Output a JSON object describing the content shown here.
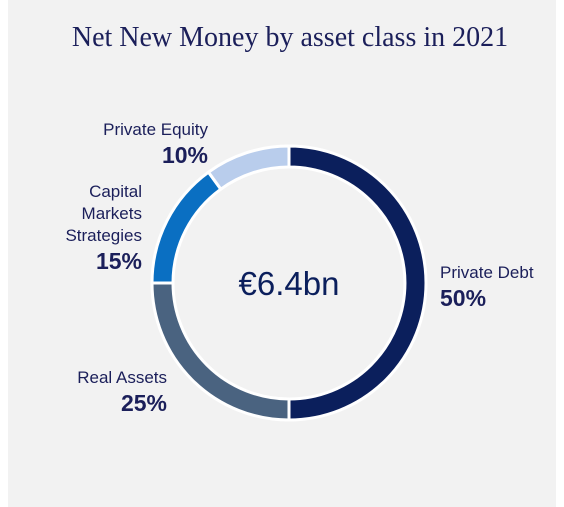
{
  "chart_data": {
    "type": "donut",
    "title": "Net New Money by asset class in 2021",
    "center_label": "€6.4bn",
    "categories": [
      "Private Debt",
      "Real Assets",
      "Capital Markets Strategies",
      "Private Equity"
    ],
    "values": [
      50,
      25,
      15,
      10
    ],
    "value_labels": [
      "50%",
      "25%",
      "15%",
      "10%"
    ],
    "colors": [
      "#0b1f5c",
      "#4a6380",
      "#0a6fc2",
      "#b9cdec"
    ]
  }
}
